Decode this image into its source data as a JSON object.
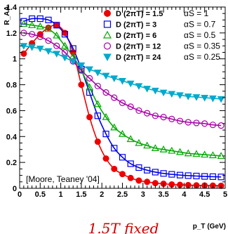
{
  "chart_data": {
    "type": "line",
    "title": "",
    "xlabel": "p_T (GeV)",
    "ylabel": "R_AA",
    "xlim": [
      0,
      5
    ],
    "ylim": [
      0,
      1.4
    ],
    "xticks": [
      "0",
      "0.5",
      "1",
      "1.5",
      "2",
      "2.5",
      "3",
      "3.5",
      "4",
      "4.5",
      "5"
    ],
    "yticks": [
      "0",
      "0.2",
      "0.4",
      "0.6",
      "0.8",
      "1",
      "1.2",
      "1.4"
    ],
    "grid": false,
    "legend_position": "top-right",
    "annotation": "[Moore, Teaney '04]",
    "bottom_text": "1.5T fixed",
    "series": [
      {
        "name": "D (2πT) = 1.5",
        "alpha": "αS = 1",
        "color": "#ee0000",
        "marker": "filled-circle",
        "x": [
          0.1,
          0.3,
          0.5,
          0.7,
          0.9,
          1.1,
          1.3,
          1.5,
          1.7,
          1.9,
          2.1,
          2.3,
          2.5,
          2.7,
          2.9,
          3.1,
          3.3,
          3.5,
          3.7,
          3.9,
          4.1,
          4.3,
          4.5,
          4.7,
          4.9
        ],
        "values": [
          1.04,
          1.12,
          1.19,
          1.24,
          1.26,
          1.2,
          1.05,
          0.8,
          0.55,
          0.36,
          0.23,
          0.15,
          0.11,
          0.08,
          0.06,
          0.05,
          0.04,
          0.035,
          0.03,
          0.027,
          0.025,
          0.023,
          0.022,
          0.021,
          0.02
        ]
      },
      {
        "name": "D (2πT) = 3",
        "alpha": "αS = 0.7",
        "color": "#0000ee",
        "marker": "open-square",
        "x": [
          0.1,
          0.3,
          0.5,
          0.7,
          0.9,
          1.1,
          1.3,
          1.5,
          1.7,
          1.9,
          2.1,
          2.3,
          2.5,
          2.7,
          2.9,
          3.1,
          3.3,
          3.5,
          3.7,
          3.9,
          4.1,
          4.3,
          4.5,
          4.7,
          4.9
        ],
        "values": [
          1.29,
          1.31,
          1.31,
          1.3,
          1.26,
          1.19,
          1.08,
          0.92,
          0.74,
          0.56,
          0.42,
          0.31,
          0.24,
          0.19,
          0.16,
          0.14,
          0.125,
          0.115,
          0.108,
          0.102,
          0.098,
          0.095,
          0.092,
          0.09,
          0.088
        ]
      },
      {
        "name": "D (2πT) = 6",
        "alpha": "αS = 0.5",
        "color": "#00aa00",
        "marker": "open-triangle",
        "x": [
          0.1,
          0.3,
          0.5,
          0.7,
          0.9,
          1.1,
          1.3,
          1.5,
          1.7,
          1.9,
          2.1,
          2.3,
          2.5,
          2.7,
          2.9,
          3.1,
          3.3,
          3.5,
          3.7,
          3.9,
          4.1,
          4.3,
          4.5,
          4.7,
          4.9
        ],
        "values": [
          1.27,
          1.26,
          1.25,
          1.23,
          1.18,
          1.1,
          1.02,
          0.91,
          0.78,
          0.65,
          0.55,
          0.47,
          0.42,
          0.38,
          0.35,
          0.33,
          0.31,
          0.3,
          0.29,
          0.28,
          0.27,
          0.265,
          0.26,
          0.255,
          0.25
        ]
      },
      {
        "name": "D (2πT) = 12",
        "alpha": "αS = 0.35",
        "color": "#aa00aa",
        "marker": "open-circle",
        "x": [
          0.1,
          0.3,
          0.5,
          0.7,
          0.9,
          1.1,
          1.3,
          1.5,
          1.7,
          1.9,
          2.1,
          2.3,
          2.5,
          2.7,
          2.9,
          3.1,
          3.3,
          3.5,
          3.7,
          3.9,
          4.1,
          4.3,
          4.5,
          4.7,
          4.9
        ],
        "values": [
          1.2,
          1.19,
          1.17,
          1.14,
          1.1,
          1.05,
          0.98,
          0.91,
          0.85,
          0.79,
          0.74,
          0.7,
          0.66,
          0.63,
          0.6,
          0.58,
          0.56,
          0.55,
          0.535,
          0.52,
          0.51,
          0.505,
          0.5,
          0.49,
          0.485
        ]
      },
      {
        "name": "D (2πT) = 24",
        "alpha": "αS = 0.25",
        "color": "#00aacc",
        "marker": "filled-triangle-down",
        "x": [
          0.1,
          0.3,
          0.5,
          0.7,
          0.9,
          1.1,
          1.3,
          1.5,
          1.7,
          1.9,
          2.1,
          2.3,
          2.5,
          2.7,
          2.9,
          3.1,
          3.3,
          3.5,
          3.7,
          3.9,
          4.1,
          4.3,
          4.5,
          4.7,
          4.9
        ],
        "values": [
          1.1,
          1.09,
          1.08,
          1.06,
          1.04,
          1.01,
          0.98,
          0.95,
          0.92,
          0.895,
          0.87,
          0.85,
          0.83,
          0.81,
          0.79,
          0.77,
          0.755,
          0.74,
          0.73,
          0.72,
          0.71,
          0.705,
          0.7,
          0.695,
          0.69
        ]
      }
    ]
  }
}
